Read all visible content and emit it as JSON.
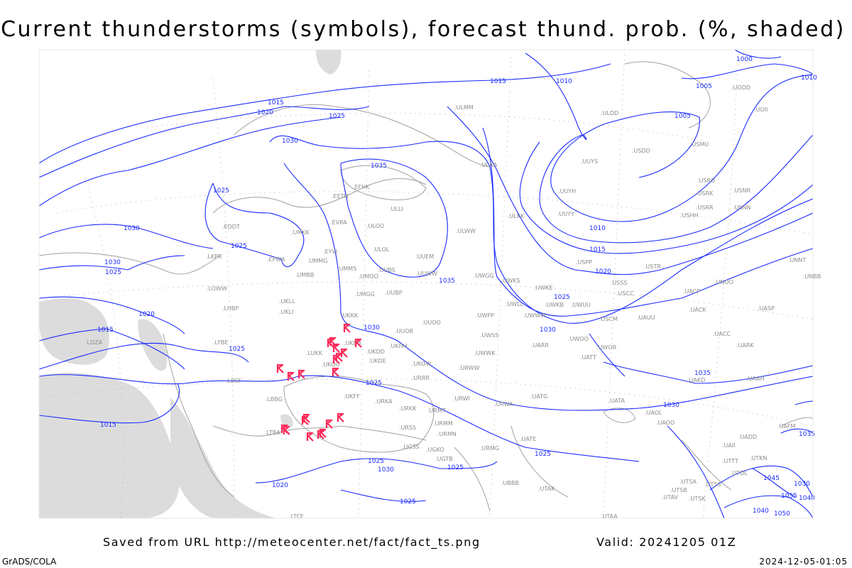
{
  "title": "Current thunderstorms (symbols), forecast thund. prob. (%, shaded)",
  "footer": {
    "saved_from": "Saved from URL http://meteocenter.net/fact/fact_ts.png",
    "valid": "Valid: 20241205 01Z",
    "software": "GrADS/COLA",
    "timestamp": "2024-12-05-01:05"
  },
  "colors": {
    "isobars": "#1a2bff",
    "thunderstorm_symbol": "#ff2a5a",
    "probability_shading": "#dcdcdc",
    "coastlines": "#a0a0a0"
  },
  "legend_symbol": "thunderstorm-symbol",
  "isobar_labels": [
    "1000",
    "1005",
    "1010",
    "1015",
    "1010",
    "1005",
    "1015",
    "1020",
    "1025",
    "1030",
    "1035",
    "1025",
    "1030",
    "1025",
    "1030",
    "1025",
    "1020",
    "1015",
    "1025",
    "1030",
    "1035",
    "1025",
    "1010",
    "1015",
    "1020",
    "1025",
    "1030",
    "1035",
    "1030",
    "1015",
    "1025",
    "1025",
    "1030",
    "1025",
    "1020",
    "1025",
    "1035",
    "1030",
    "1045",
    "1035",
    "1040",
    "1040",
    "1050"
  ],
  "stations": [
    "ULMM",
    "ULAA",
    "ULDD",
    "UODD",
    "UOII",
    "USDD",
    "USMU",
    "UUYS",
    "UUYH",
    "USRO",
    "USRK",
    "USNR",
    "USRR",
    "USNN",
    "UUYY",
    "USHH",
    "ULKK",
    "ULWW",
    "ULOO",
    "ULLI",
    "EFHK",
    "EETN",
    "EVRA",
    "EDDT",
    "UMKK",
    "LKPR",
    "EPWA",
    "EYVI",
    "UMMG",
    "UMBB",
    "LOWW",
    "LHBP",
    "UKLL",
    "UKLI",
    "UMMS",
    "UMOO",
    "ULOL",
    "UUEM",
    "UUBS",
    "UUWW",
    "UMGG",
    "UUBP",
    "UWGG",
    "UWKS",
    "UWKE",
    "UWKB",
    "UWUU",
    "UWLL",
    "UWWW",
    "USPP",
    "USTR",
    "USSS",
    "USCC",
    "UACP",
    "UNOO",
    "UNNT",
    "UNBB",
    "UACK",
    "UASP",
    "USCM",
    "UAUU",
    "UWPP",
    "UUOO",
    "UKKK",
    "UUOB",
    "UWSS",
    "UARR",
    "UWOO",
    "UWOR",
    "UATT",
    "UACC",
    "UARK",
    "UKHH",
    "UKDD",
    "UKBB",
    "LUKK",
    "UKOO",
    "UKDE",
    "UWWK",
    "UKOW",
    "URWW",
    "UKFF",
    "URRR",
    "LBSF",
    "URWI",
    "URKA",
    "URKK",
    "LBBG",
    "URMT",
    "URWA",
    "UATG",
    "UATA",
    "UAOL",
    "UAOO",
    "URMM",
    "URSS",
    "URMN",
    "LTBA",
    "UATE",
    "UGSS",
    "UGKO",
    "URMG",
    "UGTB",
    "UBBB",
    "UTAK",
    "UTAA",
    "UTSA",
    "UTSB",
    "UTSS",
    "UTSK",
    "UTAV",
    "UAAH",
    "UAKD",
    "UAII",
    "UADD",
    "UTTT",
    "UTKN",
    "UTDL",
    "UAFM",
    "LTCE",
    "LYBE",
    "LDZA"
  ]
}
